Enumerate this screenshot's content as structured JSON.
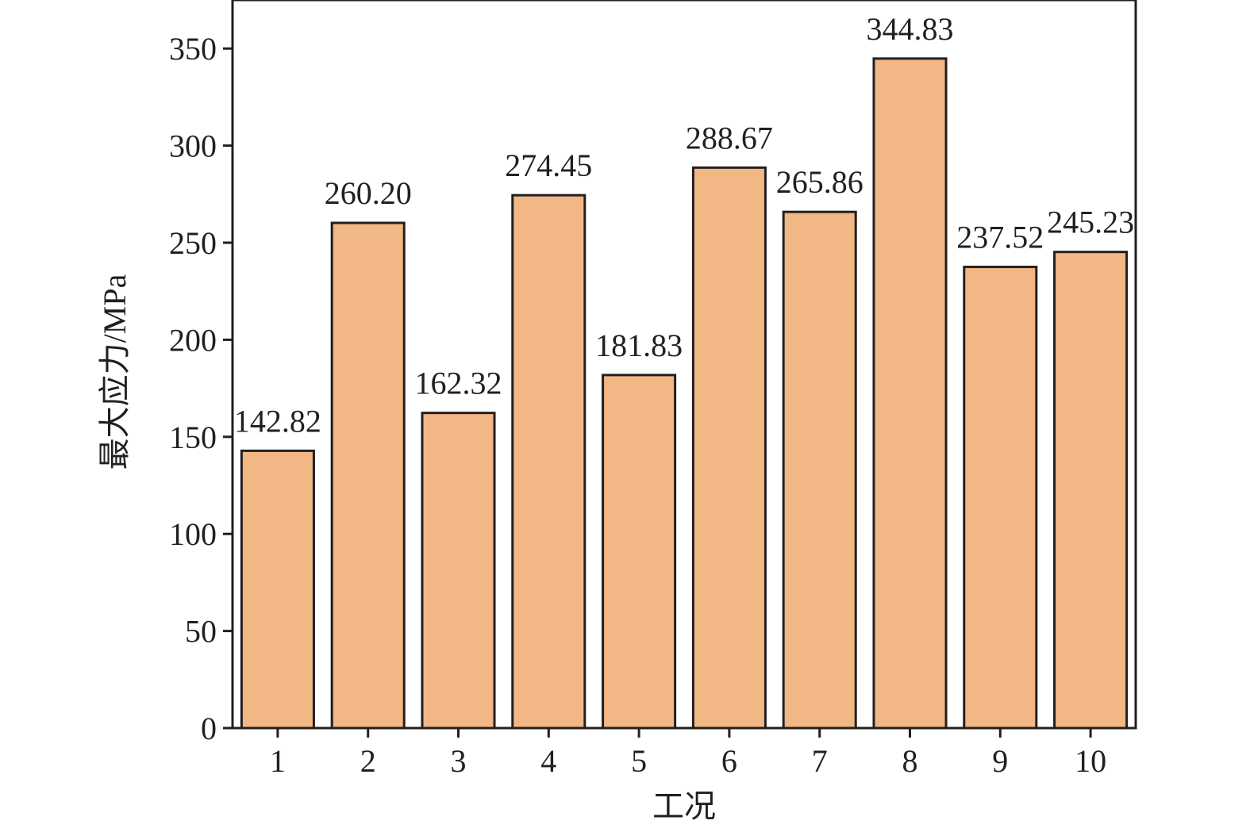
{
  "chart_data": {
    "type": "bar",
    "title": "",
    "xlabel": "工况",
    "ylabel": "最大应力/MPa",
    "categories": [
      "1",
      "2",
      "3",
      "4",
      "5",
      "6",
      "7",
      "8",
      "9",
      "10"
    ],
    "values": [
      142.82,
      260.2,
      162.32,
      274.45,
      181.83,
      288.67,
      265.86,
      344.83,
      237.52,
      245.23
    ],
    "data_labels": [
      "142.82",
      "260.20",
      "162.32",
      "274.45",
      "181.83",
      "288.67",
      "265.86",
      "344.83",
      "237.52",
      "245.23"
    ],
    "ylim": [
      0,
      375
    ],
    "yticks": [
      0,
      50,
      100,
      150,
      200,
      250,
      300,
      350
    ],
    "grid": false,
    "legend": "none",
    "colors": {
      "bar_fill": "#f1b784",
      "bar_stroke": "#231f20",
      "axis": "#231f20",
      "text": "#231f20"
    }
  }
}
